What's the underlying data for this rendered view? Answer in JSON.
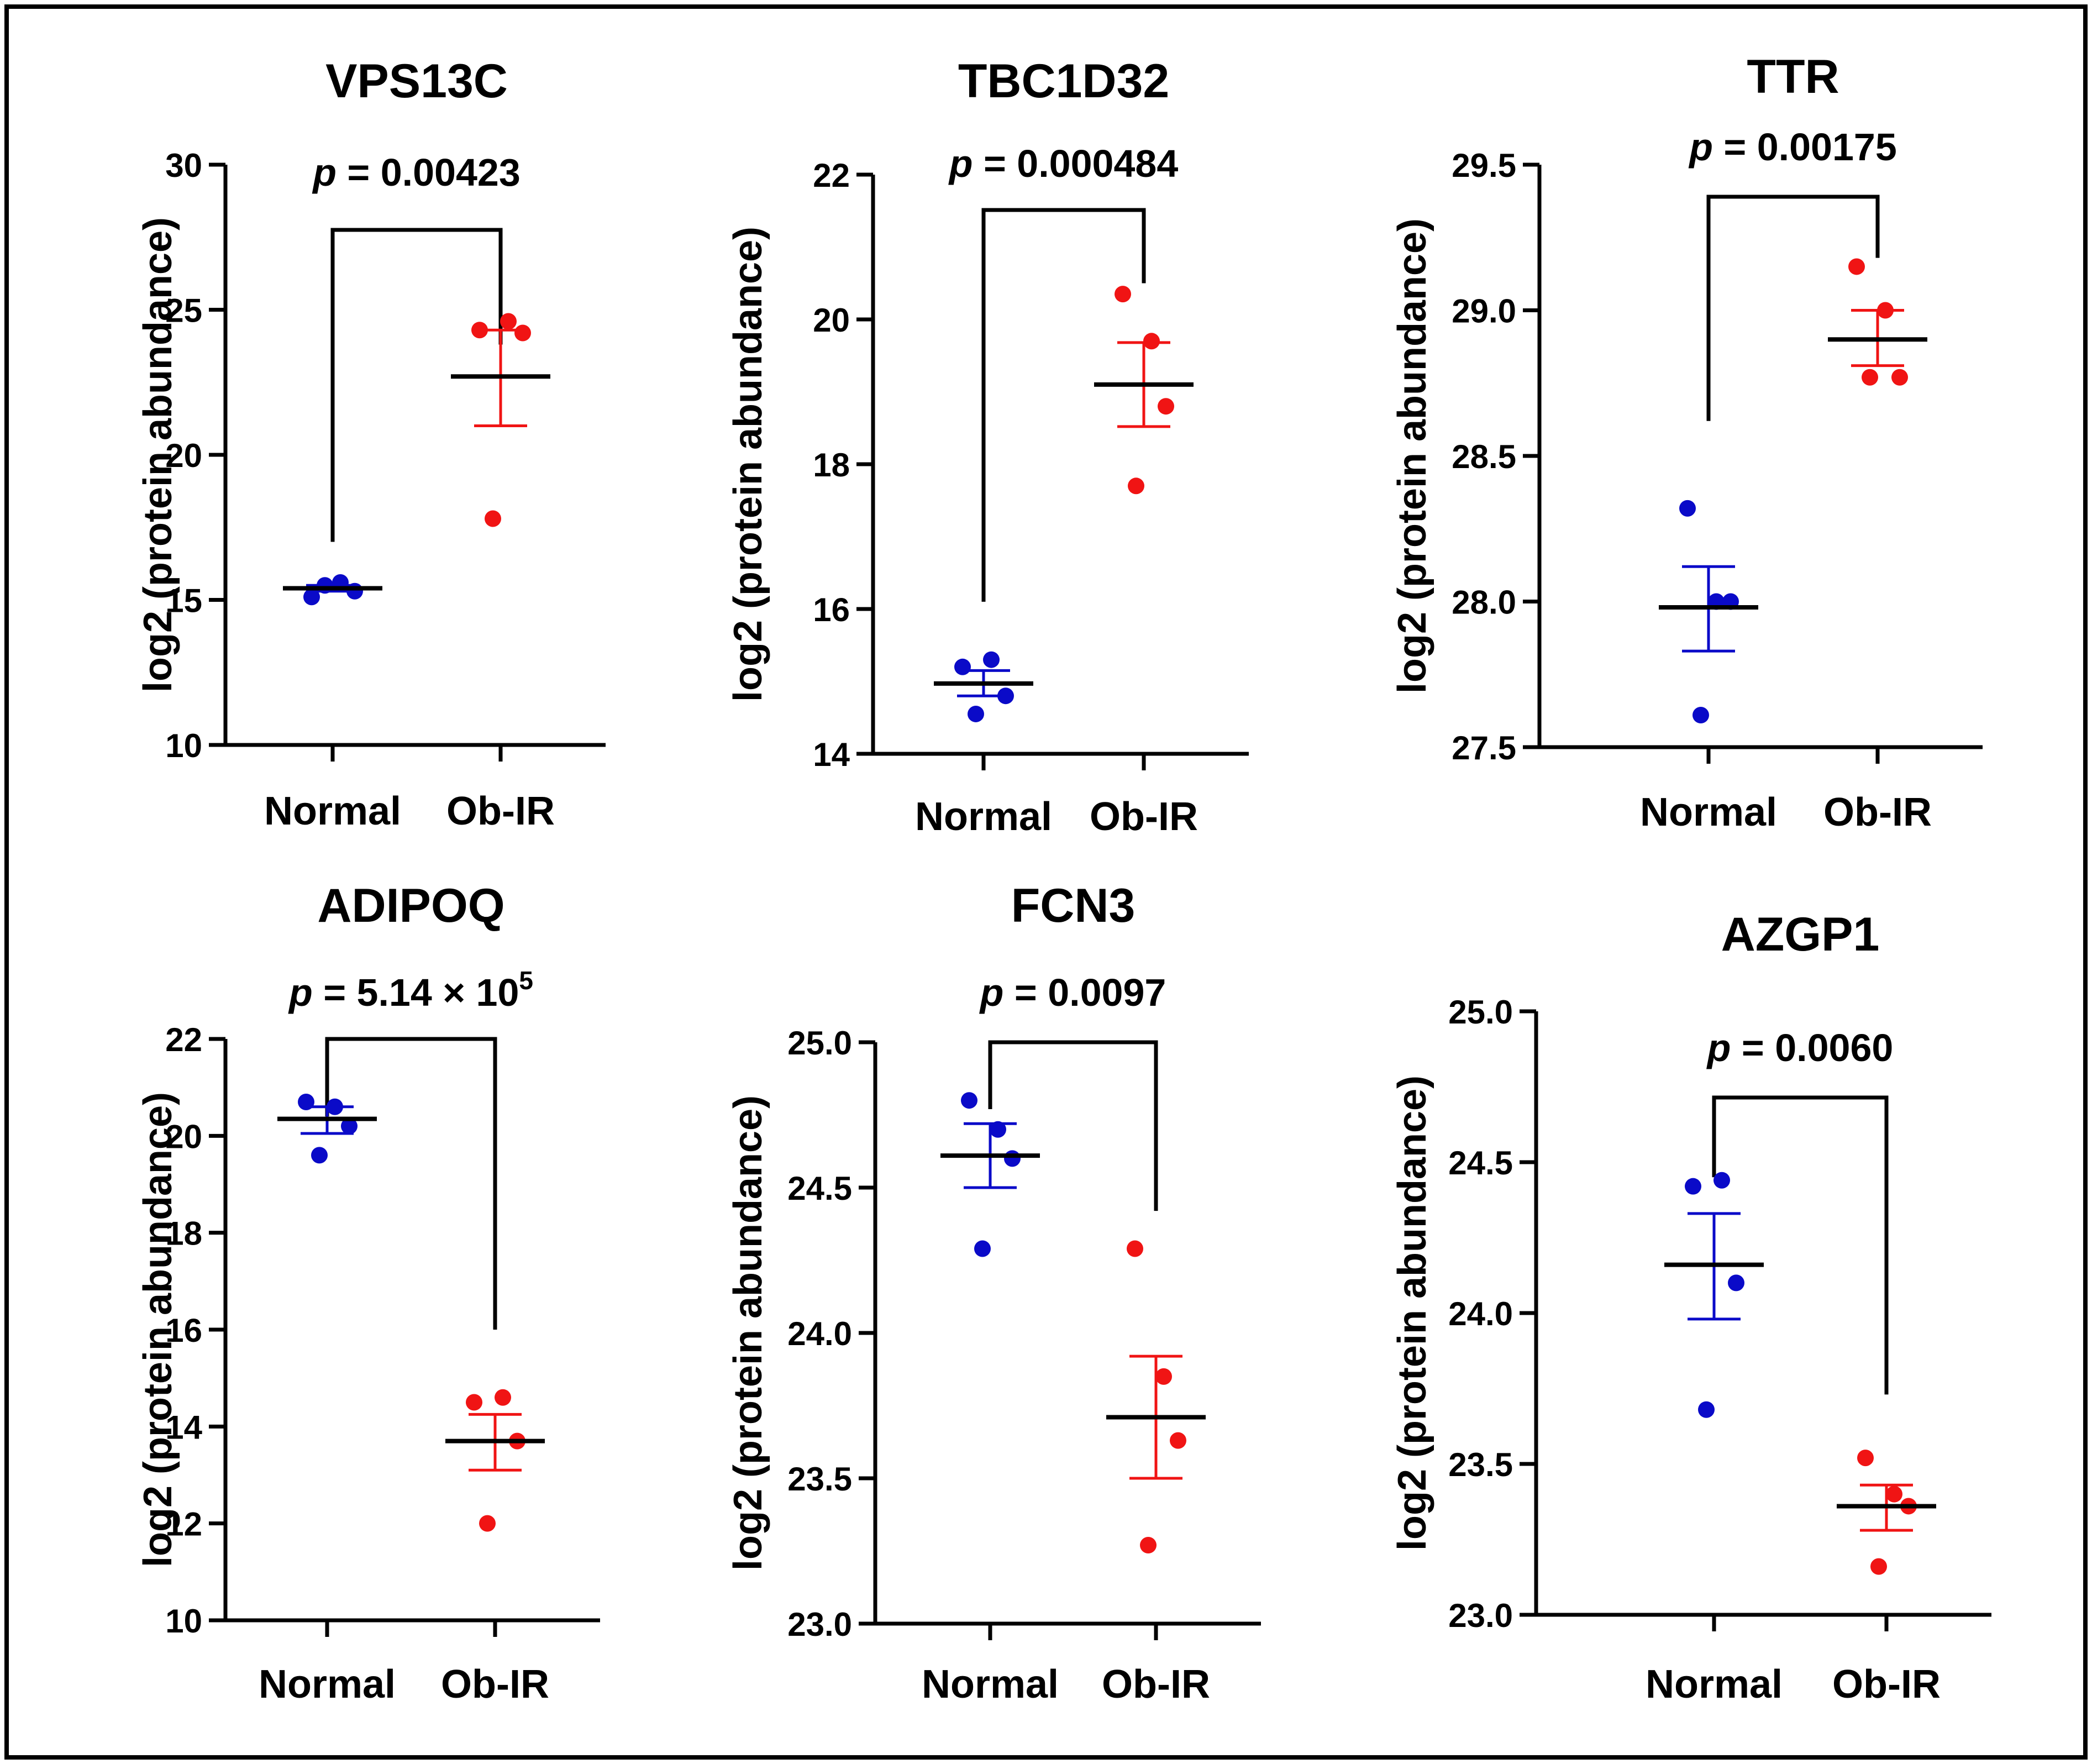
{
  "colors": {
    "normal": "#0A0AC8",
    "obir": "#F01414",
    "mean": "#000000",
    "frame": "#000000"
  },
  "y_label": "log2 (protein abundance)",
  "chart_data": [
    {
      "type": "scatter",
      "title": "VPS13C",
      "p_prefix": "p",
      "p_text": "= 0.00423",
      "ylabel": "log2 (protein abundance)",
      "ylim": [
        10,
        30
      ],
      "yticks": [
        10,
        15,
        20,
        25,
        30
      ],
      "tick_decimals": 0,
      "categories": [
        "Normal",
        "Ob-IR"
      ],
      "bracket_ends": [
        17,
        23.8
      ],
      "series": [
        {
          "name": "Normal",
          "values": [
            15.1,
            15.6,
            15.3,
            15.5
          ],
          "mean": 15.4,
          "sem_low": 15.3,
          "sem_high": 15.5
        },
        {
          "name": "Ob-IR",
          "values": [
            24.3,
            24.6,
            24.2,
            17.8
          ],
          "mean": 22.7,
          "sem_low": 21.0,
          "sem_high": 24.3
        }
      ]
    },
    {
      "type": "scatter",
      "title": "TBC1D32",
      "p_prefix": "p",
      "p_text": "= 0.000484",
      "ylabel": "log2 (protein abundance)",
      "ylim": [
        14,
        22
      ],
      "yticks": [
        14,
        16,
        18,
        20,
        22
      ],
      "tick_decimals": 0,
      "categories": [
        "Normal",
        "Ob-IR"
      ],
      "bracket_ends": [
        16.1,
        20.5
      ],
      "series": [
        {
          "name": "Normal",
          "values": [
            15.2,
            15.3,
            14.8,
            14.55
          ],
          "mean": 14.97,
          "sem_low": 14.8,
          "sem_high": 15.15
        },
        {
          "name": "Ob-IR",
          "values": [
            20.35,
            19.7,
            18.8,
            17.7
          ],
          "mean": 19.1,
          "sem_low": 18.52,
          "sem_high": 19.68
        }
      ]
    },
    {
      "type": "scatter",
      "title": "TTR",
      "p_prefix": "p",
      "p_text": "= 0.00175",
      "ylabel": "log2 (protein abundance)",
      "ylim": [
        27.5,
        29.5
      ],
      "yticks": [
        27.5,
        28.0,
        28.5,
        29.0,
        29.5
      ],
      "tick_decimals": 1,
      "categories": [
        "Normal",
        "Ob-IR"
      ],
      "bracket_ends": [
        28.62,
        29.18
      ],
      "series": [
        {
          "name": "Normal",
          "values": [
            28.32,
            28.0,
            28.0,
            27.61
          ],
          "mean": 27.98,
          "sem_low": 27.83,
          "sem_high": 28.12
        },
        {
          "name": "Ob-IR",
          "values": [
            29.15,
            29.0,
            28.77,
            28.77
          ],
          "mean": 28.9,
          "sem_low": 28.81,
          "sem_high": 29.0
        }
      ]
    },
    {
      "type": "scatter",
      "title": "ADIPOQ",
      "p_prefix": "p",
      "p_text": "= 5.14 × 10",
      "p_exponent": "5",
      "ylabel": "log2 (protein abundance)",
      "ylim": [
        10,
        22
      ],
      "yticks": [
        10,
        12,
        14,
        16,
        18,
        20,
        22
      ],
      "tick_decimals": 0,
      "categories": [
        "Normal",
        "Ob-IR"
      ],
      "bracket_ends": [
        20.4,
        16.0
      ],
      "series": [
        {
          "name": "Normal",
          "values": [
            20.7,
            20.6,
            20.2,
            19.6
          ],
          "mean": 20.35,
          "sem_low": 20.05,
          "sem_high": 20.6
        },
        {
          "name": "Ob-IR",
          "values": [
            14.5,
            14.6,
            13.7,
            12.0
          ],
          "mean": 13.7,
          "sem_low": 13.1,
          "sem_high": 14.25
        }
      ]
    },
    {
      "type": "scatter",
      "title": "FCN3",
      "p_prefix": "p",
      "p_text": "= 0.0097",
      "ylabel": "log2 (protein abundance)",
      "ylim": [
        23.0,
        25.0
      ],
      "yticks": [
        23.0,
        23.5,
        24.0,
        24.5,
        25.0
      ],
      "tick_decimals": 1,
      "categories": [
        "Normal",
        "Ob-IR"
      ],
      "bracket_ends": [
        24.77,
        24.42
      ],
      "series": [
        {
          "name": "Normal",
          "values": [
            24.8,
            24.7,
            24.6,
            24.29
          ],
          "mean": 24.61,
          "sem_low": 24.5,
          "sem_high": 24.72
        },
        {
          "name": "Ob-IR",
          "values": [
            24.29,
            23.85,
            23.63,
            23.27
          ],
          "mean": 23.71,
          "sem_low": 23.5,
          "sem_high": 23.92
        }
      ]
    },
    {
      "type": "scatter",
      "title": "AZGP1",
      "p_prefix": "p",
      "p_text": "= 0.0060",
      "ylabel": "log2 (protein abundance)",
      "ylim": [
        23.0,
        25.0
      ],
      "yticks": [
        23.0,
        23.5,
        24.0,
        24.5,
        25.0
      ],
      "tick_decimals": 1,
      "categories": [
        "Normal",
        "Ob-IR"
      ],
      "bracket_ends": [
        24.45,
        23.73
      ],
      "series": [
        {
          "name": "Normal",
          "values": [
            24.42,
            24.44,
            24.1,
            23.68
          ],
          "mean": 24.16,
          "sem_low": 23.98,
          "sem_high": 24.33
        },
        {
          "name": "Ob-IR",
          "values": [
            23.52,
            23.4,
            23.36,
            23.16
          ],
          "mean": 23.36,
          "sem_low": 23.28,
          "sem_high": 23.43
        }
      ]
    }
  ]
}
